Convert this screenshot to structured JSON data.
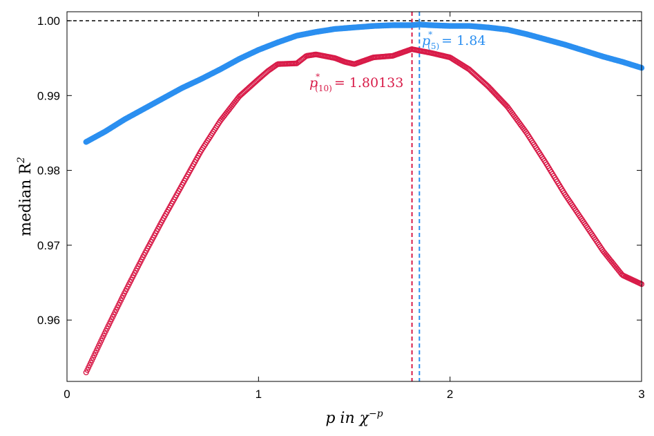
{
  "chart_data": {
    "type": "line",
    "x_label": "p in χ",
    "x_label_exponent": "−p",
    "y_label": "median R",
    "y_label_exponent": "2",
    "xlim": [
      0,
      3
    ],
    "ylim": [
      0.9518,
      1.0012
    ],
    "x_ticks": [
      0,
      1,
      2,
      3
    ],
    "x_tick_labels": [
      "0",
      "1",
      "2",
      "3"
    ],
    "y_ticks": [
      0.96,
      0.97,
      0.98,
      0.99,
      1.0
    ],
    "y_tick_labels": [
      "0.96",
      "0.97",
      "0.98",
      "0.99",
      "1.00"
    ],
    "reference_line": {
      "y": 1.0,
      "style": "dashed",
      "color": "#000000"
    },
    "series": [
      {
        "key": "p5",
        "color": "#2b8ff0",
        "marker": "filled-circle",
        "x": [
          0.1,
          0.2,
          0.3,
          0.4,
          0.5,
          0.6,
          0.7,
          0.8,
          0.9,
          1.0,
          1.1,
          1.2,
          1.3,
          1.4,
          1.5,
          1.6,
          1.7,
          1.8,
          1.84,
          1.9,
          2.0,
          2.1,
          2.2,
          2.3,
          2.4,
          2.5,
          2.6,
          2.7,
          2.8,
          2.9,
          3.0
        ],
        "y": [
          0.9838,
          0.9852,
          0.9868,
          0.9882,
          0.9896,
          0.991,
          0.9922,
          0.9935,
          0.9949,
          0.9961,
          0.9971,
          0.998,
          0.9985,
          0.9989,
          0.9991,
          0.9993,
          0.9994,
          0.9994,
          0.9995,
          0.9994,
          0.9993,
          0.9993,
          0.9991,
          0.9988,
          0.9982,
          0.9975,
          0.9968,
          0.996,
          0.9952,
          0.9945,
          0.9937
        ]
      },
      {
        "key": "p10",
        "color": "#d81b48",
        "marker": "open-circle",
        "x": [
          0.1,
          0.2,
          0.3,
          0.4,
          0.5,
          0.6,
          0.7,
          0.8,
          0.9,
          1.0,
          1.05,
          1.1,
          1.2,
          1.25,
          1.3,
          1.4,
          1.45,
          1.5,
          1.6,
          1.7,
          1.8,
          1.9,
          2.0,
          2.1,
          2.2,
          2.3,
          2.4,
          2.5,
          2.6,
          2.7,
          2.8,
          2.9,
          3.0
        ],
        "y": [
          0.953,
          0.9584,
          0.9636,
          0.9686,
          0.9734,
          0.978,
          0.9826,
          0.9866,
          0.9899,
          0.9922,
          0.9933,
          0.9942,
          0.9943,
          0.9953,
          0.9955,
          0.995,
          0.9945,
          0.9942,
          0.9951,
          0.9953,
          0.9962,
          0.9957,
          0.9951,
          0.9935,
          0.9912,
          0.9885,
          0.985,
          0.981,
          0.9768,
          0.973,
          0.9692,
          0.966,
          0.9648
        ]
      }
    ],
    "vertical_lines": [
      {
        "x": 1.80133,
        "color": "#d81b48",
        "style": "dashed"
      },
      {
        "x": 1.84,
        "color": "#2b8ff0",
        "style": "dashed"
      }
    ],
    "annotations": [
      {
        "symbol": "p",
        "superscript": "*",
        "subscript": "(5)",
        "text": "= 1.84",
        "color": "#2b8ff0"
      },
      {
        "symbol": "p",
        "superscript": "*",
        "subscript": "(10)",
        "text": "= 1.80133",
        "color": "#d81b48"
      }
    ]
  }
}
